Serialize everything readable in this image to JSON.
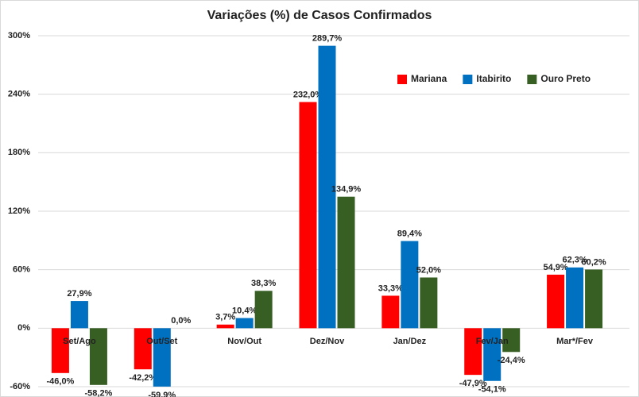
{
  "chart_data": {
    "type": "bar",
    "title": "Variações (%) de Casos Confirmados",
    "categories": [
      "Set/Ago",
      "Out/Set",
      "Nov/Out",
      "Dez/Nov",
      "Jan/Dez",
      "Fev/Jan",
      "Mar*/Fev"
    ],
    "series": [
      {
        "name": "Mariana",
        "color": "#ff0000",
        "values": [
          -46.0,
          -42.2,
          3.7,
          232.0,
          33.3,
          -47.9,
          54.9
        ],
        "value_labels": [
          "-46,0%",
          "-42,2%",
          "3,7%",
          "232,0%",
          "33,3%",
          "-47,9%",
          "54,9%"
        ]
      },
      {
        "name": "Itabirito",
        "color": "#0070c0",
        "values": [
          27.9,
          -59.9,
          10.4,
          289.7,
          89.4,
          -54.1,
          62.3
        ],
        "value_labels": [
          "27,9%",
          "-59,9%",
          "10,4%",
          "289,7%",
          "89,4%",
          "-54,1%",
          "62,3%"
        ]
      },
      {
        "name": "Ouro Preto",
        "color": "#375f23",
        "values": [
          -58.2,
          0.0,
          38.3,
          134.9,
          52.0,
          -24.4,
          60.2
        ],
        "value_labels": [
          "-58,2%",
          "0,0%",
          "38,3%",
          "134,9%",
          "52,0%",
          "-24,4%",
          "60,2%"
        ]
      }
    ],
    "ylim": [
      -60,
      300
    ],
    "yticks": [
      {
        "value": -60,
        "label": "-60%"
      },
      {
        "value": 0,
        "label": "0%"
      },
      {
        "value": 60,
        "label": "60%"
      },
      {
        "value": 120,
        "label": "120%"
      },
      {
        "value": 180,
        "label": "180%"
      },
      {
        "value": 240,
        "label": "240%"
      },
      {
        "value": 300,
        "label": "300%"
      }
    ],
    "grid": true,
    "legend": "top-right"
  }
}
